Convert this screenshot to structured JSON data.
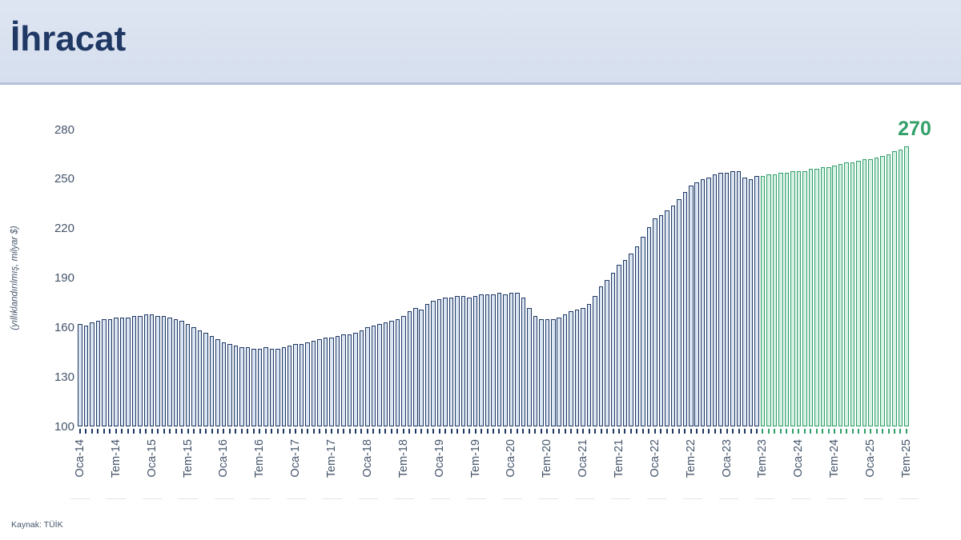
{
  "header": {
    "title": "İhracat"
  },
  "footer": {
    "source": "Kaynak: TÜİK"
  },
  "chart_data": {
    "type": "bar",
    "title": "İhracat",
    "ylabel": "(yıllıklandırılmış, milyar $)",
    "unit": "milyar $",
    "ylim": [
      100,
      280
    ],
    "yticks": [
      280,
      250,
      220,
      190,
      160,
      130,
      100
    ],
    "grid": false,
    "legend_position": "none",
    "x_tick_labels": [
      "Oca-14",
      "Tem-14",
      "Oca-15",
      "Tem-15",
      "Oca-16",
      "Tem-16",
      "Oca-17",
      "Tem-17",
      "Oca-18",
      "Tem-18",
      "Oca-19",
      "Tem-19",
      "Oca-20",
      "Tem-20",
      "Oca-21",
      "Tem-21",
      "Oca-22",
      "Tem-22",
      "Oca-23",
      "Tem-23",
      "Oca-24",
      "Tem-24",
      "Oca-25",
      "Tem-25"
    ],
    "x_tick_month_step": 6,
    "start_month": "2014-01",
    "end_month": "2025-07",
    "values": [
      162,
      161,
      163,
      164,
      165,
      165,
      166,
      166,
      166,
      167,
      167,
      168,
      168,
      167,
      167,
      166,
      165,
      164,
      162,
      160,
      158,
      157,
      155,
      153,
      151,
      150,
      149,
      148,
      148,
      147,
      147,
      148,
      147,
      147,
      148,
      149,
      150,
      150,
      151,
      152,
      153,
      154,
      154,
      155,
      156,
      156,
      157,
      158,
      160,
      161,
      162,
      163,
      164,
      165,
      167,
      170,
      172,
      171,
      174,
      176,
      177,
      178,
      178,
      179,
      179,
      178,
      179,
      180,
      180,
      180,
      181,
      180,
      181,
      181,
      178,
      172,
      167,
      165,
      165,
      165,
      166,
      168,
      170,
      171,
      172,
      174,
      179,
      185,
      189,
      193,
      198,
      201,
      205,
      209,
      215,
      221,
      226,
      228,
      231,
      234,
      238,
      242,
      246,
      248,
      250,
      251,
      253,
      254,
      254,
      255,
      255,
      251,
      250,
      252,
      252,
      253,
      253,
      254,
      254,
      255,
      255,
      255,
      256,
      256,
      257,
      257,
      258,
      259,
      260,
      260,
      261,
      262,
      262,
      263,
      264,
      265,
      267,
      268,
      270
    ],
    "green_from_index": 114,
    "green_from_month": "2023-07",
    "last_value_label": "270",
    "colors": {
      "navy_border": "#1f3864",
      "navy_fill": "#dce6f3",
      "green_border": "#2f9e68",
      "green_fill": "#d7f2e4",
      "annotation_green": "#33a06a"
    }
  }
}
